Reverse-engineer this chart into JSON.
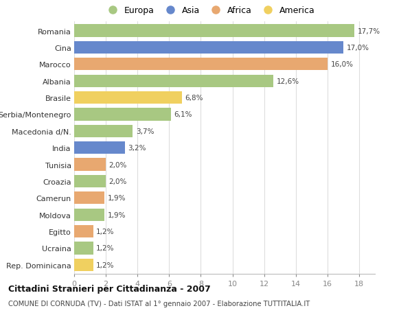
{
  "categories": [
    "Romania",
    "Cina",
    "Marocco",
    "Albania",
    "Brasile",
    "Serbia/Montenegro",
    "Macedonia d/N.",
    "India",
    "Tunisia",
    "Croazia",
    "Camerun",
    "Moldova",
    "Egitto",
    "Ucraina",
    "Rep. Dominicana"
  ],
  "values": [
    17.7,
    17.0,
    16.0,
    12.6,
    6.8,
    6.1,
    3.7,
    3.2,
    2.0,
    2.0,
    1.9,
    1.9,
    1.2,
    1.2,
    1.2
  ],
  "labels": [
    "17,7%",
    "17,0%",
    "16,0%",
    "12,6%",
    "6,8%",
    "6,1%",
    "3,7%",
    "3,2%",
    "2,0%",
    "2,0%",
    "1,9%",
    "1,9%",
    "1,2%",
    "1,2%",
    "1,2%"
  ],
  "continents": [
    "Europa",
    "Asia",
    "Africa",
    "Europa",
    "America",
    "Europa",
    "Europa",
    "Asia",
    "Africa",
    "Europa",
    "Africa",
    "Europa",
    "Africa",
    "Europa",
    "America"
  ],
  "colors": {
    "Europa": "#a8c882",
    "Asia": "#6688cc",
    "Africa": "#e8a870",
    "America": "#f0d060"
  },
  "legend_order": [
    "Europa",
    "Asia",
    "Africa",
    "America"
  ],
  "xlim": [
    0,
    19
  ],
  "xticks": [
    0,
    2,
    4,
    6,
    8,
    10,
    12,
    14,
    16,
    18
  ],
  "title": "Cittadini Stranieri per Cittadinanza - 2007",
  "subtitle": "COMUNE DI CORNUDA (TV) - Dati ISTAT al 1° gennaio 2007 - Elaborazione TUTTITALIA.IT",
  "bg_color": "#ffffff",
  "grid_color": "#dddddd",
  "bar_height": 0.75
}
